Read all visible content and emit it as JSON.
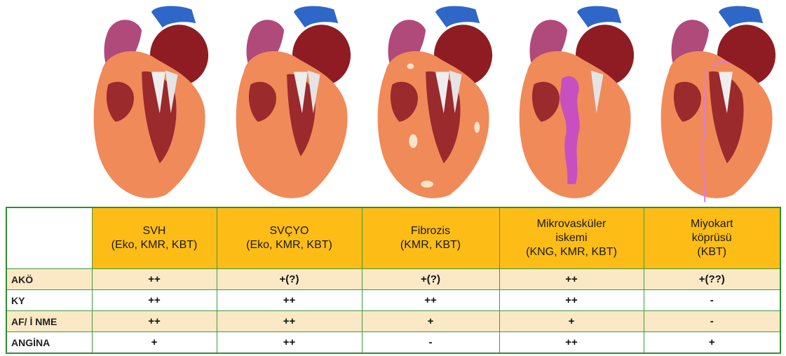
{
  "table": {
    "columns": [
      {
        "lines": [
          "SVH",
          "(Eko, KMR, KBT)"
        ]
      },
      {
        "lines": [
          "SVÇYO",
          "(Eko, KMR, KBT)"
        ]
      },
      {
        "lines": [
          "Fibrozis",
          "(KMR, KBT)"
        ]
      },
      {
        "lines": [
          "Mikrovasküler",
          "iskemi",
          "(KNG, KMR, KBT)"
        ]
      },
      {
        "lines": [
          "Miyokart",
          "köprüsü",
          "(KBT)"
        ]
      }
    ],
    "rows": [
      {
        "label": "AKÖ",
        "values": [
          "++",
          "+(?)",
          "+(?)",
          "++",
          "+(??)"
        ]
      },
      {
        "label": "KY",
        "values": [
          "++",
          "++",
          "++",
          "++",
          "-"
        ]
      },
      {
        "label": "AF/ İ NME",
        "values": [
          "++",
          "++",
          "+",
          "+",
          "-"
        ]
      },
      {
        "label": "ANGİNA",
        "values": [
          "+",
          "++",
          "-",
          "++",
          "+"
        ]
      }
    ]
  },
  "illustrations": [
    {
      "icon": "heart-hypertrophy-illustration"
    },
    {
      "icon": "heart-thickening-illustration"
    },
    {
      "icon": "heart-fibrosis-illustration"
    },
    {
      "icon": "heart-microvascular-ischemia-illustration"
    },
    {
      "icon": "heart-myocardial-bridge-illustration"
    }
  ],
  "colors": {
    "header_fill": "#fdbd16",
    "alt_row_fill": "#fbe9c5",
    "border": "#2f8f2f",
    "myocardium": "#f08a58",
    "ischemia": "#c84fc0"
  }
}
